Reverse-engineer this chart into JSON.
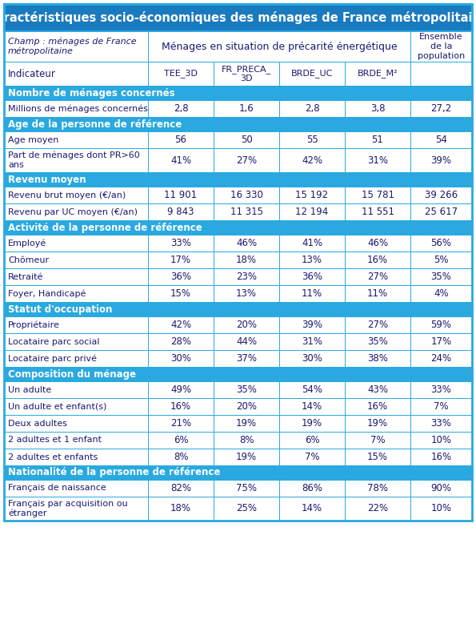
{
  "title": "Caractéristiques socio-économiques des ménages de France métropolitaine",
  "title_bg": "#1a7abf",
  "section_bg": "#29a9e0",
  "white": "#ffffff",
  "dark_blue": "#1a1a6e",
  "border_color": "#29a9e0",
  "champ_text": "Champ : ménages de France\nmétropolitaine",
  "menages_header": "Ménages en situation de précarité énergétique",
  "ensemble_header": "Ensemble\nde la\npopulation",
  "indicateur": "Indicateur",
  "col_headers": [
    "TEE_3D",
    "FR_PRECA_\n3D",
    "BRDE_UC",
    "BRDE_M²"
  ],
  "sections": [
    {
      "name": "Nombre de ménages concernés",
      "rows": [
        {
          "label": "Millions de ménages concernés",
          "values": [
            "2,8",
            "1,6",
            "2,8",
            "3,8",
            "27,2"
          ],
          "tall": false
        }
      ]
    },
    {
      "name": "Age de la personne de référence",
      "rows": [
        {
          "label": "Age moyen",
          "values": [
            "56",
            "50",
            "55",
            "51",
            "54"
          ],
          "tall": false
        },
        {
          "label": "Part de ménages dont PR>60\nans",
          "values": [
            "41%",
            "27%",
            "42%",
            "31%",
            "39%"
          ],
          "tall": true
        }
      ]
    },
    {
      "name": "Revenu moyen",
      "rows": [
        {
          "label": "Revenu brut moyen (€/an)",
          "values": [
            "11 901",
            "16 330",
            "15 192",
            "15 781",
            "39 266"
          ],
          "tall": false
        },
        {
          "label": "Revenu par UC moyen (€/an)",
          "values": [
            "9 843",
            "11 315",
            "12 194",
            "11 551",
            "25 617"
          ],
          "tall": false
        }
      ]
    },
    {
      "name": "Activité de la personne de référence",
      "rows": [
        {
          "label": "Employé",
          "values": [
            "33%",
            "46%",
            "41%",
            "46%",
            "56%"
          ],
          "tall": false
        },
        {
          "label": "Chômeur",
          "values": [
            "17%",
            "18%",
            "13%",
            "16%",
            "5%"
          ],
          "tall": false
        },
        {
          "label": "Retraité",
          "values": [
            "36%",
            "23%",
            "36%",
            "27%",
            "35%"
          ],
          "tall": false
        },
        {
          "label": "Foyer, Handicapé",
          "values": [
            "15%",
            "13%",
            "11%",
            "11%",
            "4%"
          ],
          "tall": false
        }
      ]
    },
    {
      "name": "Statut d'occupation",
      "rows": [
        {
          "label": "Propriétaire",
          "values": [
            "42%",
            "20%",
            "39%",
            "27%",
            "59%"
          ],
          "tall": false
        },
        {
          "label": "Locataire parc social",
          "values": [
            "28%",
            "44%",
            "31%",
            "35%",
            "17%"
          ],
          "tall": false
        },
        {
          "label": "Locataire parc privé",
          "values": [
            "30%",
            "37%",
            "30%",
            "38%",
            "24%"
          ],
          "tall": false
        }
      ]
    },
    {
      "name": "Composition du ménage",
      "rows": [
        {
          "label": "Un adulte",
          "values": [
            "49%",
            "35%",
            "54%",
            "43%",
            "33%"
          ],
          "tall": false
        },
        {
          "label": "Un adulte et enfant(s)",
          "values": [
            "16%",
            "20%",
            "14%",
            "16%",
            "7%"
          ],
          "tall": false
        },
        {
          "label": "Deux adultes",
          "values": [
            "21%",
            "19%",
            "19%",
            "19%",
            "33%"
          ],
          "tall": false
        },
        {
          "label": "2 adultes et 1 enfant",
          "values": [
            "6%",
            "8%",
            "6%",
            "7%",
            "10%"
          ],
          "tall": false
        },
        {
          "label": "2 adultes et enfants",
          "values": [
            "8%",
            "19%",
            "7%",
            "15%",
            "16%"
          ],
          "tall": false
        }
      ]
    },
    {
      "name": "Nationalité de la personne de référence",
      "rows": [
        {
          "label": "Français de naissance",
          "values": [
            "82%",
            "75%",
            "86%",
            "78%",
            "90%"
          ],
          "tall": false
        },
        {
          "label": "Français par acquisition ou\nétranger",
          "values": [
            "18%",
            "25%",
            "14%",
            "22%",
            "10%"
          ],
          "tall": true
        }
      ]
    }
  ]
}
